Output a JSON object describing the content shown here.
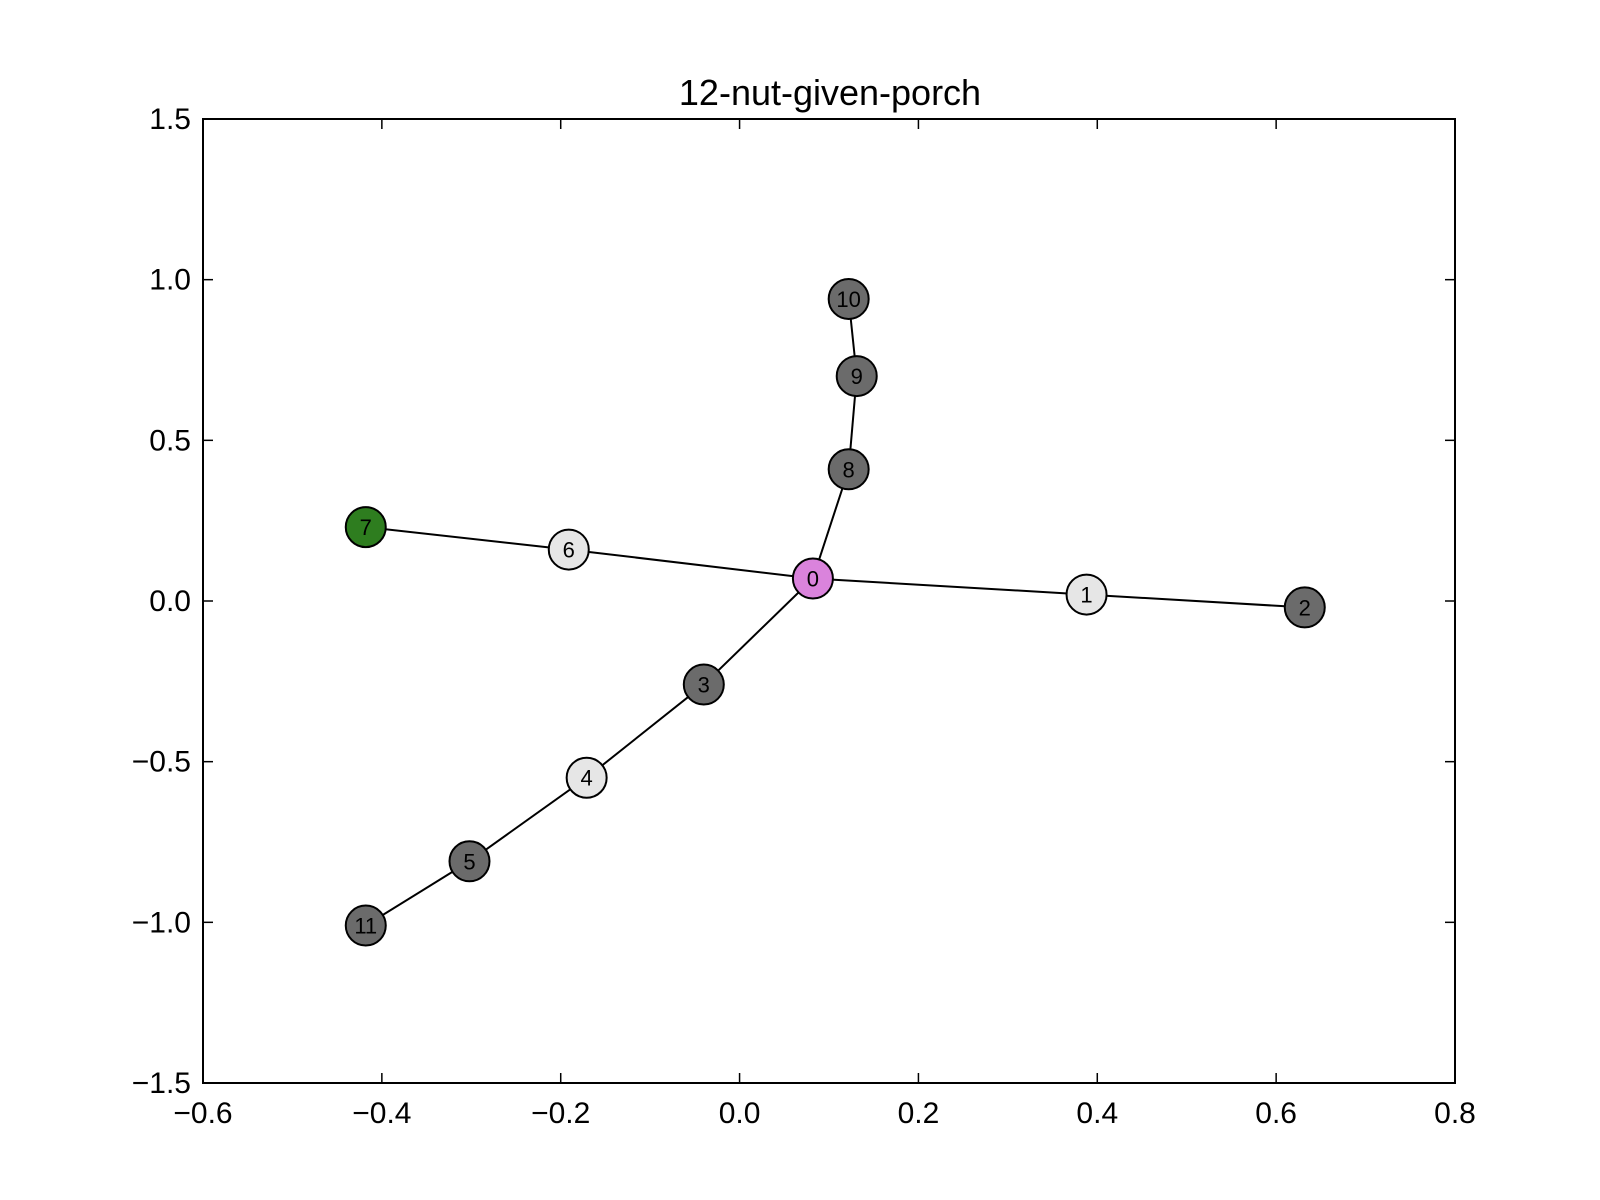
{
  "chart_data": {
    "type": "network",
    "title": "12-nut-given-porch",
    "xlabel": "",
    "ylabel": "",
    "xlim": [
      -0.6,
      0.8
    ],
    "ylim": [
      -1.5,
      1.5
    ],
    "x_ticks": [
      -0.6,
      -0.4,
      -0.2,
      0.0,
      0.2,
      0.4,
      0.6,
      0.8
    ],
    "x_tick_labels": [
      "−0.6",
      "−0.4",
      "−0.2",
      "0.0",
      "0.2",
      "0.4",
      "0.6",
      "0.8"
    ],
    "y_ticks": [
      1.5,
      1.0,
      0.5,
      0.0,
      -0.5,
      -1.0,
      -1.5
    ],
    "y_tick_labels": [
      "1.5",
      "1.0",
      "0.5",
      "0.0",
      "−0.5",
      "−1.0",
      "−1.5"
    ],
    "grid": false,
    "nodes": [
      {
        "id": "0",
        "x": 0.082,
        "y": 0.07,
        "color": "#da83dc"
      },
      {
        "id": "1",
        "x": 0.388,
        "y": 0.02,
        "color": "#e6e6e6"
      },
      {
        "id": "2",
        "x": 0.632,
        "y": -0.02,
        "color": "#6b6b6b"
      },
      {
        "id": "3",
        "x": -0.04,
        "y": -0.26,
        "color": "#6b6b6b"
      },
      {
        "id": "4",
        "x": -0.171,
        "y": -0.55,
        "color": "#e6e6e6"
      },
      {
        "id": "5",
        "x": -0.302,
        "y": -0.81,
        "color": "#6b6b6b"
      },
      {
        "id": "6",
        "x": -0.191,
        "y": 0.16,
        "color": "#e6e6e6"
      },
      {
        "id": "7",
        "x": -0.418,
        "y": 0.23,
        "color": "#2e7d1f"
      },
      {
        "id": "8",
        "x": 0.122,
        "y": 0.41,
        "color": "#6b6b6b"
      },
      {
        "id": "9",
        "x": 0.131,
        "y": 0.7,
        "color": "#6b6b6b"
      },
      {
        "id": "10",
        "x": 0.122,
        "y": 0.94,
        "color": "#6b6b6b"
      },
      {
        "id": "11",
        "x": -0.418,
        "y": -1.01,
        "color": "#6b6b6b"
      }
    ],
    "edges": [
      [
        "0",
        "1"
      ],
      [
        "1",
        "2"
      ],
      [
        "0",
        "3"
      ],
      [
        "3",
        "4"
      ],
      [
        "4",
        "5"
      ],
      [
        "5",
        "11"
      ],
      [
        "0",
        "6"
      ],
      [
        "6",
        "7"
      ],
      [
        "0",
        "8"
      ],
      [
        "8",
        "9"
      ],
      [
        "9",
        "10"
      ]
    ]
  }
}
